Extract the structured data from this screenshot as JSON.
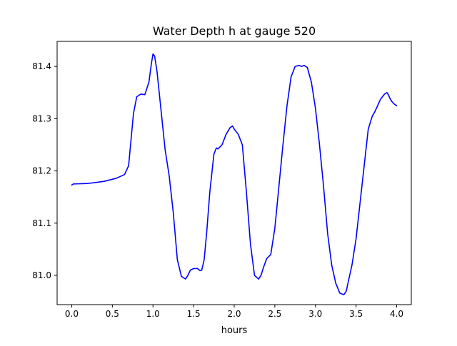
{
  "chart_data": {
    "type": "line",
    "title": "Water Depth h at gauge 520",
    "xlabel": "hours",
    "ylabel": "",
    "xlim": [
      -0.18,
      4.18
    ],
    "ylim": [
      80.944,
      81.448
    ],
    "xticks": [
      0.0,
      0.5,
      1.0,
      1.5,
      2.0,
      2.5,
      3.0,
      3.5,
      4.0
    ],
    "xtick_labels": [
      "0.0",
      "0.5",
      "1.0",
      "1.5",
      "2.0",
      "2.5",
      "3.0",
      "3.5",
      "4.0"
    ],
    "yticks": [
      81.0,
      81.1,
      81.2,
      81.3,
      81.4
    ],
    "ytick_labels": [
      "81.0",
      "81.1",
      "81.2",
      "81.3",
      "81.4"
    ],
    "grid": false,
    "series": [
      {
        "color": "#0000ff",
        "x": [
          0.0,
          0.02,
          0.2,
          0.4,
          0.55,
          0.65,
          0.7,
          0.73,
          0.76,
          0.8,
          0.85,
          0.9,
          0.95,
          0.98,
          1.0,
          1.02,
          1.05,
          1.1,
          1.15,
          1.2,
          1.25,
          1.3,
          1.35,
          1.4,
          1.43,
          1.46,
          1.5,
          1.55,
          1.58,
          1.6,
          1.63,
          1.66,
          1.7,
          1.75,
          1.78,
          1.8,
          1.85,
          1.9,
          1.95,
          1.98,
          2.0,
          2.05,
          2.1,
          2.15,
          2.2,
          2.25,
          2.3,
          2.33,
          2.36,
          2.4,
          2.45,
          2.5,
          2.55,
          2.6,
          2.65,
          2.7,
          2.75,
          2.8,
          2.83,
          2.86,
          2.9,
          2.95,
          3.0,
          3.05,
          3.1,
          3.15,
          3.2,
          3.25,
          3.3,
          3.35,
          3.38,
          3.4,
          3.45,
          3.5,
          3.55,
          3.6,
          3.65,
          3.7,
          3.73,
          3.76,
          3.8,
          3.85,
          3.88,
          3.9,
          3.92,
          3.94,
          3.97,
          4.0
        ],
        "y": [
          81.173,
          81.175,
          81.176,
          81.18,
          81.186,
          81.193,
          81.21,
          81.26,
          81.31,
          81.342,
          81.347,
          81.346,
          81.37,
          81.405,
          81.424,
          81.42,
          81.39,
          81.315,
          81.24,
          81.19,
          81.12,
          81.03,
          80.998,
          80.993,
          81.0,
          81.01,
          81.013,
          81.013,
          81.009,
          81.01,
          81.03,
          81.08,
          81.16,
          81.232,
          81.244,
          81.242,
          81.25,
          81.27,
          81.283,
          81.286,
          81.28,
          81.27,
          81.25,
          81.16,
          81.06,
          81.0,
          80.993,
          81.0,
          81.015,
          81.032,
          81.04,
          81.09,
          81.17,
          81.25,
          81.325,
          81.38,
          81.4,
          81.402,
          81.4,
          81.402,
          81.398,
          81.37,
          81.32,
          81.25,
          81.17,
          81.08,
          81.02,
          80.985,
          80.966,
          80.963,
          80.97,
          80.985,
          81.02,
          81.07,
          81.14,
          81.21,
          81.28,
          81.305,
          81.313,
          81.323,
          81.337,
          81.347,
          81.35,
          81.345,
          81.338,
          81.333,
          81.328,
          81.325
        ]
      }
    ]
  }
}
